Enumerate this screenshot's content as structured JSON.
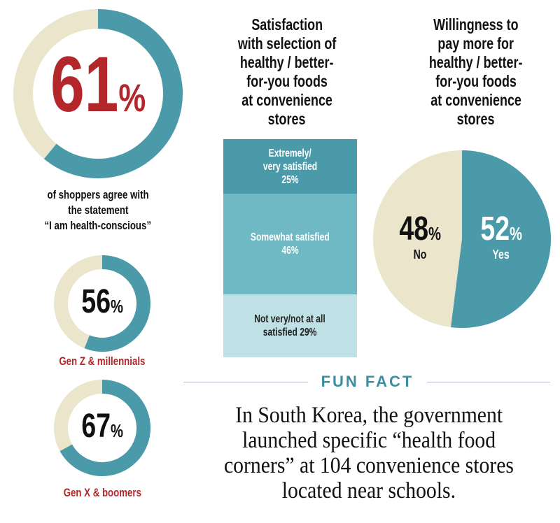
{
  "colors": {
    "teal": "#4a9aa9",
    "beige": "#ebe5cc",
    "red": "#b3262a",
    "mid_teal": "#6fb9c4",
    "light_teal": "#bfe0e4"
  },
  "chart_data": [
    {
      "type": "pie",
      "style": "donut",
      "value": 61,
      "value_text": "61",
      "pct_sign": "%",
      "caption_lines": [
        "of shoppers agree with",
        "the statement",
        "“I am health-conscious”"
      ]
    },
    {
      "type": "pie",
      "style": "donut",
      "value": 56,
      "value_text": "56",
      "pct_sign": "%",
      "label": "Gen Z & millennials"
    },
    {
      "type": "pie",
      "style": "donut",
      "value": 67,
      "value_text": "67",
      "pct_sign": "%",
      "label": "Gen X & boomers"
    },
    {
      "type": "bar",
      "stacked": true,
      "title_lines": [
        "Satisfaction",
        "with selection of",
        "healthy / better-",
        "for-you foods",
        "at convenience",
        "stores"
      ],
      "segments": [
        {
          "lines": [
            "Extremely/",
            "very satisfied",
            "25%"
          ],
          "value": 25
        },
        {
          "lines": [
            "Somewhat satisfied",
            "46%"
          ],
          "value": 46
        },
        {
          "lines": [
            "Not very/not at all",
            "satisfied 29%"
          ],
          "value": 29
        }
      ]
    },
    {
      "type": "pie",
      "title_lines": [
        "Willingness to",
        "pay more for",
        "healthy / better-",
        "for-you foods",
        "at convenience",
        "stores"
      ],
      "slices": [
        {
          "label": "Yes",
          "value": 52,
          "value_text": "52",
          "pct_sign": "%"
        },
        {
          "label": "No",
          "value": 48,
          "value_text": "48",
          "pct_sign": "%"
        }
      ]
    }
  ],
  "fun_fact": {
    "title": "FUN FACT",
    "lines": [
      "In South Korea, the government",
      "launched specific “health food",
      "corners” at 104 convenience stores",
      "located near schools."
    ]
  }
}
